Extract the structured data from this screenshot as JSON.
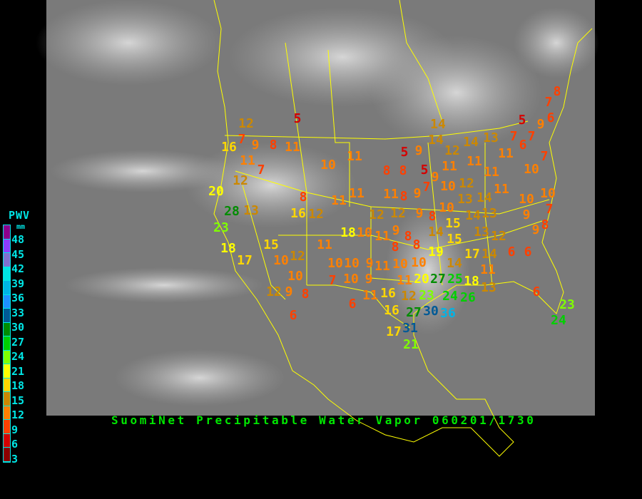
{
  "title": "SuomiNet Precipitable Water Vapor 060201/1730",
  "legend": {
    "title": "PWV",
    "unit": "mm",
    "labels": [
      "48",
      "45",
      "42",
      "39",
      "36",
      "33",
      "30",
      "27",
      "24",
      "21",
      "18",
      "15",
      "12",
      "9",
      "6",
      "3"
    ],
    "colors": [
      "#8c008c",
      "#8c3cff",
      "#8070d0",
      "#00e6e6",
      "#00b4e6",
      "#1e90ff",
      "#005a96",
      "#008c00",
      "#00d000",
      "#80ff00",
      "#ffff00",
      "#ffd700",
      "#cc8800",
      "#ff8000",
      "#ff4000",
      "#d40000",
      "#8b0000"
    ]
  },
  "colors": {
    "borders": "#ffff00",
    "title": "#00e600",
    "legend_text": "#00e6e6"
  },
  "stations": [
    12,
    7,
    16,
    9,
    8,
    11,
    11,
    5,
    7,
    10,
    11,
    12,
    20,
    28,
    13,
    23,
    8,
    16,
    12,
    11,
    11,
    18,
    17,
    15,
    10,
    12,
    11,
    10,
    12,
    9,
    8,
    6,
    10,
    7,
    10,
    10,
    9,
    11,
    9,
    6,
    11,
    18,
    16,
    10,
    11,
    9,
    8,
    8,
    8,
    5,
    9,
    5,
    9,
    7,
    10,
    11,
    8,
    9,
    12,
    12,
    9,
    8,
    8,
    14,
    10,
    15,
    13,
    12,
    14,
    14,
    13,
    13,
    15,
    11,
    12,
    11,
    14,
    14,
    14,
    13,
    11,
    11,
    7,
    6,
    5,
    9,
    7,
    6,
    7,
    8,
    11,
    7,
    10,
    10,
    10,
    7,
    9,
    8,
    9,
    10,
    8,
    10,
    19,
    20,
    11,
    12,
    16,
    23,
    27,
    25,
    24,
    27,
    30,
    36,
    26,
    14,
    17,
    14,
    12,
    11,
    18,
    13,
    6,
    6,
    6,
    23,
    24,
    17,
    31,
    21
  ]
}
